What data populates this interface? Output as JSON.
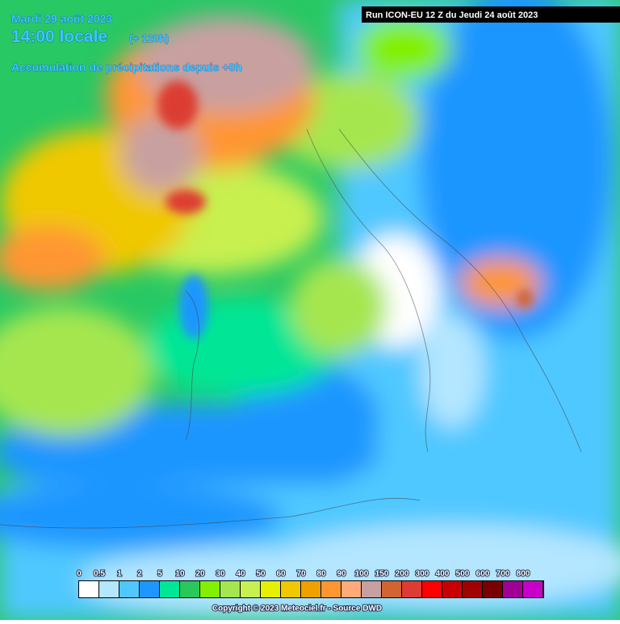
{
  "header": {
    "date": "Mardi 29 août 2023",
    "time": "14:00 locale",
    "offset": "(+ 120h)",
    "subtitle": "Accumulation de précipitations depuis +0h",
    "run": "Run ICON-EU 12 Z du Jeudi 24 août 2023"
  },
  "legend": {
    "labels": [
      "0",
      "0.5",
      "1",
      "2",
      "5",
      "10",
      "20",
      "30",
      "40",
      "50",
      "60",
      "70",
      "80",
      "90",
      "100",
      "150",
      "200",
      "300",
      "400",
      "500",
      "600",
      "700",
      "800"
    ],
    "colors": [
      "#ffffff",
      "#b4e6ff",
      "#50c8ff",
      "#1e96ff",
      "#00e696",
      "#28c85a",
      "#82f000",
      "#a5e650",
      "#c8f050",
      "#e6f000",
      "#f0c800",
      "#f0a000",
      "#ff9632",
      "#ffaa78",
      "#c8a0a0",
      "#d26432",
      "#dc3c32",
      "#ff0000",
      "#c80000",
      "#a00000",
      "#780000",
      "#a00096",
      "#c800c8"
    ]
  },
  "copyright": "Copyright © 2023 Meteociel.fr - Source DWD"
}
